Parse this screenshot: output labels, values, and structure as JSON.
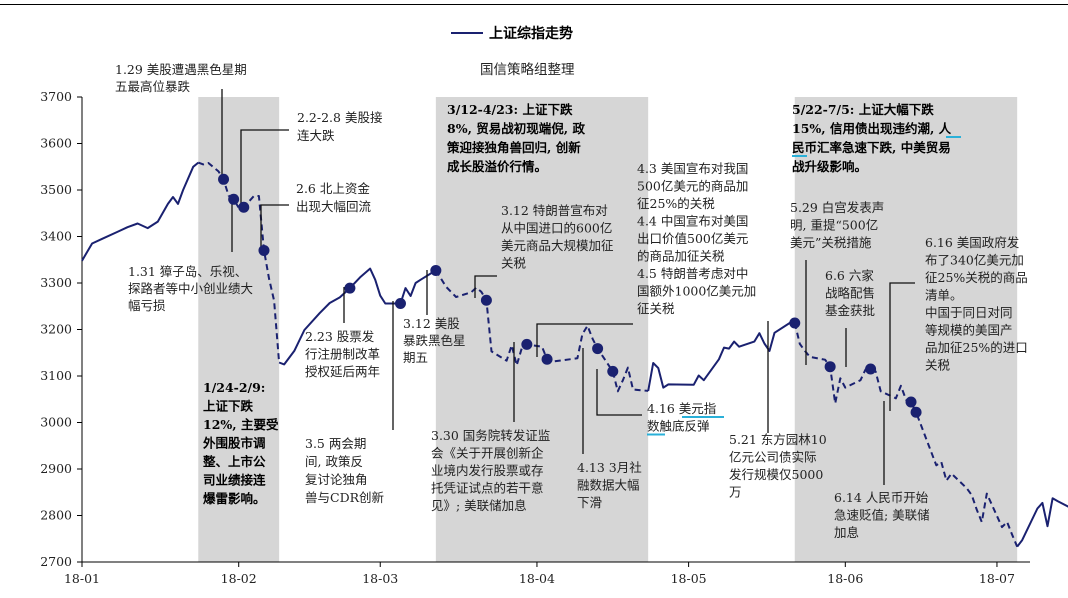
{
  "chart_data": {
    "type": "line",
    "title": "",
    "subtitle": "国信策略组整理",
    "legend": {
      "entries": [
        "上证综指走势"
      ],
      "placement": "top-center"
    },
    "xlabel": "",
    "ylabel": "",
    "x_ticks": [
      "18-01",
      "18-02",
      "18-03",
      "18-04",
      "18-05",
      "18-06",
      "18-07"
    ],
    "y_ticks": [
      2700,
      2800,
      2900,
      3000,
      3100,
      3200,
      3300,
      3400,
      3500,
      3600,
      3700
    ],
    "ylim": [
      2700,
      3700
    ],
    "grid": false,
    "colors": {
      "line": "#1a2170",
      "marker": "#1a2170",
      "shade": "#d6d6d6",
      "underline": "#2ab0d8",
      "annotation_line": "#111111"
    },
    "shaded_periods": [
      {
        "start": "2018-01-24",
        "end": "2018-02-09"
      },
      {
        "start": "2018-03-12",
        "end": "2018-04-23"
      },
      {
        "start": "2018-05-22",
        "end": "2018-07-05"
      }
    ],
    "series": [
      {
        "name": "上证综指走势",
        "points": [
          [
            "2018-01-01",
            3348
          ],
          [
            "2018-01-03",
            3385
          ],
          [
            "2018-01-05",
            3395
          ],
          [
            "2018-01-08",
            3410
          ],
          [
            "2018-01-10",
            3420
          ],
          [
            "2018-01-12",
            3428
          ],
          [
            "2018-01-14",
            3418
          ],
          [
            "2018-01-16",
            3432
          ],
          [
            "2018-01-18",
            3470
          ],
          [
            "2018-01-19",
            3485
          ],
          [
            "2018-01-20",
            3470
          ],
          [
            "2018-01-21",
            3500
          ],
          [
            "2018-01-23",
            3550
          ],
          [
            "2018-01-24",
            3559
          ],
          [
            "2018-01-25",
            3555
          ],
          [
            "2018-01-26",
            3558
          ],
          [
            "2018-01-28",
            3540
          ],
          [
            "2018-01-29",
            3523
          ],
          [
            "2018-01-30",
            3488
          ],
          [
            "2018-01-31",
            3480
          ],
          [
            "2018-02-01",
            3462
          ],
          [
            "2018-02-02",
            3463
          ],
          [
            "2018-02-04",
            3487
          ],
          [
            "2018-02-05",
            3487
          ],
          [
            "2018-02-06",
            3370
          ],
          [
            "2018-02-07",
            3310
          ],
          [
            "2018-02-08",
            3262
          ],
          [
            "2018-02-09",
            3129
          ],
          [
            "2018-02-10",
            3125
          ],
          [
            "2018-02-12",
            3154
          ],
          [
            "2018-02-14",
            3199
          ],
          [
            "2018-02-17",
            3235
          ],
          [
            "2018-02-19",
            3257
          ],
          [
            "2018-02-21",
            3269
          ],
          [
            "2018-02-23",
            3289
          ],
          [
            "2018-02-25",
            3312
          ],
          [
            "2018-02-27",
            3331
          ],
          [
            "2018-02-28",
            3307
          ],
          [
            "2018-03-01",
            3273
          ],
          [
            "2018-03-02",
            3256
          ],
          [
            "2018-03-05",
            3256
          ],
          [
            "2018-03-06",
            3289
          ],
          [
            "2018-03-07",
            3272
          ],
          [
            "2018-03-08",
            3300
          ],
          [
            "2018-03-09",
            3307
          ],
          [
            "2018-03-12",
            3327
          ],
          [
            "2018-03-13",
            3310
          ],
          [
            "2018-03-14",
            3292
          ],
          [
            "2018-03-16",
            3270
          ],
          [
            "2018-03-19",
            3280
          ],
          [
            "2018-03-20",
            3290
          ],
          [
            "2018-03-21",
            3281
          ],
          [
            "2018-03-22",
            3263
          ],
          [
            "2018-03-23",
            3153
          ],
          [
            "2018-03-26",
            3133
          ],
          [
            "2018-03-27",
            3166
          ],
          [
            "2018-03-28",
            3123
          ],
          [
            "2018-03-29",
            3160
          ],
          [
            "2018-03-30",
            3168
          ],
          [
            "2018-04-02",
            3163
          ],
          [
            "2018-04-03",
            3136
          ],
          [
            "2018-04-04",
            3131
          ],
          [
            "2018-04-09",
            3138
          ],
          [
            "2018-04-10",
            3190
          ],
          [
            "2018-04-11",
            3208
          ],
          [
            "2018-04-12",
            3180
          ],
          [
            "2018-04-13",
            3159
          ],
          [
            "2018-04-16",
            3110
          ],
          [
            "2018-04-17",
            3067
          ],
          [
            "2018-04-18",
            3091
          ],
          [
            "2018-04-19",
            3118
          ],
          [
            "2018-04-20",
            3071
          ],
          [
            "2018-04-23",
            3068
          ],
          [
            "2018-04-24",
            3128
          ],
          [
            "2018-04-25",
            3117
          ],
          [
            "2018-04-26",
            3075
          ],
          [
            "2018-04-27",
            3082
          ],
          [
            "2018-05-02",
            3081
          ],
          [
            "2018-05-03",
            3101
          ],
          [
            "2018-05-04",
            3091
          ],
          [
            "2018-05-07",
            3136
          ],
          [
            "2018-05-08",
            3161
          ],
          [
            "2018-05-09",
            3159
          ],
          [
            "2018-05-10",
            3174
          ],
          [
            "2018-05-11",
            3163
          ],
          [
            "2018-05-14",
            3174
          ],
          [
            "2018-05-15",
            3192
          ],
          [
            "2018-05-16",
            3170
          ],
          [
            "2018-05-17",
            3154
          ],
          [
            "2018-05-18",
            3193
          ],
          [
            "2018-05-21",
            3214
          ],
          [
            "2018-05-22",
            3214
          ],
          [
            "2018-05-23",
            3169
          ],
          [
            "2018-05-24",
            3154
          ],
          [
            "2018-05-25",
            3141
          ],
          [
            "2018-05-28",
            3135
          ],
          [
            "2018-05-29",
            3120
          ],
          [
            "2018-05-30",
            3041
          ],
          [
            "2018-05-31",
            3095
          ],
          [
            "2018-06-01",
            3075
          ],
          [
            "2018-06-04",
            3091
          ],
          [
            "2018-06-05",
            3114
          ],
          [
            "2018-06-06",
            3115
          ],
          [
            "2018-06-07",
            3110
          ],
          [
            "2018-06-08",
            3067
          ],
          [
            "2018-06-11",
            3052
          ],
          [
            "2018-06-12",
            3079
          ],
          [
            "2018-06-13",
            3049
          ],
          [
            "2018-06-14",
            3044
          ],
          [
            "2018-06-15",
            3022
          ],
          [
            "2018-06-19",
            2908
          ],
          [
            "2018-06-20",
            2915
          ],
          [
            "2018-06-21",
            2875
          ],
          [
            "2018-06-22",
            2890
          ],
          [
            "2018-06-25",
            2859
          ],
          [
            "2018-06-26",
            2844
          ],
          [
            "2018-06-27",
            2813
          ],
          [
            "2018-06-28",
            2786
          ],
          [
            "2018-06-29",
            2847
          ],
          [
            "2018-07-02",
            2775
          ],
          [
            "2018-07-03",
            2786
          ],
          [
            "2018-07-04",
            2759
          ],
          [
            "2018-07-05",
            2733
          ],
          [
            "2018-07-06",
            2747
          ],
          [
            "2018-07-09",
            2815
          ],
          [
            "2018-07-10",
            2827
          ],
          [
            "2018-07-11",
            2777
          ],
          [
            "2018-07-12",
            2837
          ],
          [
            "2018-07-13",
            2831
          ],
          [
            "2018-07-16",
            2814
          ],
          [
            "2018-07-17",
            2798
          ],
          [
            "2018-07-18",
            2787
          ],
          [
            "2018-07-19",
            2772
          ],
          [
            "2018-07-20",
            2829
          ],
          [
            "2018-07-21",
            2830
          ],
          [
            "2018-07-23",
            2820
          ],
          [
            "2018-07-25",
            2840
          ],
          [
            "2018-07-27",
            2830
          ]
        ]
      }
    ],
    "annotations": [
      {
        "id": "a0129",
        "lines": [
          "1.29 美股遭遇黑色星期",
          "五最高位暴跌"
        ],
        "bold": false,
        "date": "2018-01-29",
        "value": 3523
      },
      {
        "id": "a0131",
        "lines": [
          "1.31 獐子岛、乐视、",
          "探路者等中小创业绩大",
          "幅亏损"
        ],
        "bold": false,
        "date": "2018-01-31",
        "value": 3480
      },
      {
        "id": "a0202",
        "lines": [
          "2.2-2.8 美股接",
          "连大跌"
        ],
        "bold": false,
        "date": "2018-02-02",
        "value": 3463
      },
      {
        "id": "a0206",
        "lines": [
          "2.6 北上资金",
          "出现大幅回流"
        ],
        "bold": false,
        "date": "2018-02-06",
        "value": 3370
      },
      {
        "id": "a0124",
        "lines": [
          "1/24-2/9:",
          "上证下跌",
          "12%, 主要受",
          "外围股市调",
          "整、上市公",
          "司业绩接连",
          "爆雷影响。"
        ],
        "bold": true
      },
      {
        "id": "a0223",
        "lines": [
          "2.23 股票发",
          "行注册制改革",
          "授权延后两年"
        ],
        "bold": false,
        "date": "2018-02-23",
        "value": 3289
      },
      {
        "id": "a0305",
        "lines": [
          "3.5 两会期",
          "间, 政策反",
          "复讨论独角",
          "兽与CDR创新"
        ],
        "bold": false,
        "date": "2018-03-05",
        "value": 3256
      },
      {
        "id": "a0312b",
        "lines": [
          "3.12 美股",
          "暴跌黑色星",
          "期五"
        ],
        "bold": false,
        "date": "2018-03-12",
        "value": 3327
      },
      {
        "id": "a0312t",
        "lines": [
          "3/12-4/23: 上证下跌",
          "8%, 贸易战初现端倪, 政",
          "策迎接独角兽回归, 创新",
          "成长股溢价行情。"
        ],
        "bold": true
      },
      {
        "id": "a0312c",
        "lines": [
          "3.12 特朗普宣布对",
          "从中国进口的600亿",
          "美元商品大规模加征",
          "关税"
        ],
        "bold": false,
        "date": "2018-03-22",
        "value": 3263
      },
      {
        "id": "a0330",
        "lines": [
          "3.30 国务院转发证监",
          "会《关于开展创新企",
          "业境内发行股票或存",
          "托凭证试点的若干意",
          "见》; 美联储加息"
        ],
        "bold": false,
        "date": "2018-03-30",
        "value": 3168
      },
      {
        "id": "a0403",
        "lines": [
          "4.3 美国宣布对我国",
          "500亿美元的商品加",
          "征25%的关税",
          "4.4 中国宣布对美国",
          "出口价值500亿美元",
          "的商品加征关税",
          "4.5 特朗普考虑对中",
          "国额外1000亿美元加",
          "征关税"
        ],
        "bold": false,
        "date": "2018-04-03",
        "value": 3136
      },
      {
        "id": "a0413",
        "lines": [
          "4.13 3月社",
          "融数据大幅",
          "下滑"
        ],
        "bold": false,
        "date": "2018-04-13",
        "value": 3159
      },
      {
        "id": "a0416",
        "lines": [
          "4.16 美元指",
          "数触底反弹"
        ],
        "bold": false,
        "date": "2018-04-16",
        "value": 3110
      },
      {
        "id": "a0522t",
        "lines": [
          "5/22-7/5: 上证大幅下跌",
          "15%, 信用债出现违约潮, 人",
          "民币汇率急速下跌, 中美贸易",
          "战升级影响。"
        ],
        "bold": true
      },
      {
        "id": "a0521",
        "lines": [
          "5.21 东方园林10",
          "亿元公司债实际",
          "发行规模仅5000",
          "万"
        ],
        "bold": false,
        "date": "2018-05-22",
        "value": 3214
      },
      {
        "id": "a0529",
        "lines": [
          "5.29 白宫发表声",
          "明, 重提“500亿",
          "美元”关税措施"
        ],
        "bold": false,
        "date": "2018-05-29",
        "value": 3120
      },
      {
        "id": "a0606",
        "lines": [
          "6.6 六家",
          "战略配售",
          "基金获批"
        ],
        "bold": false,
        "date": "2018-06-06",
        "value": 3115
      },
      {
        "id": "a0614",
        "lines": [
          "6.14 人民币开始",
          "急速贬值; 美联储",
          "加息"
        ],
        "bold": false,
        "date": "2018-06-14",
        "value": 3044
      },
      {
        "id": "a0616",
        "lines": [
          "6.16 美国政府发",
          "布了340亿美元加",
          "征25%关税的商品",
          "清单。",
          "中国于同日对同",
          "等规模的美国产",
          "品加征25%的进口",
          "关税"
        ],
        "bold": false,
        "date": "2018-06-15",
        "value": 3022
      }
    ]
  }
}
